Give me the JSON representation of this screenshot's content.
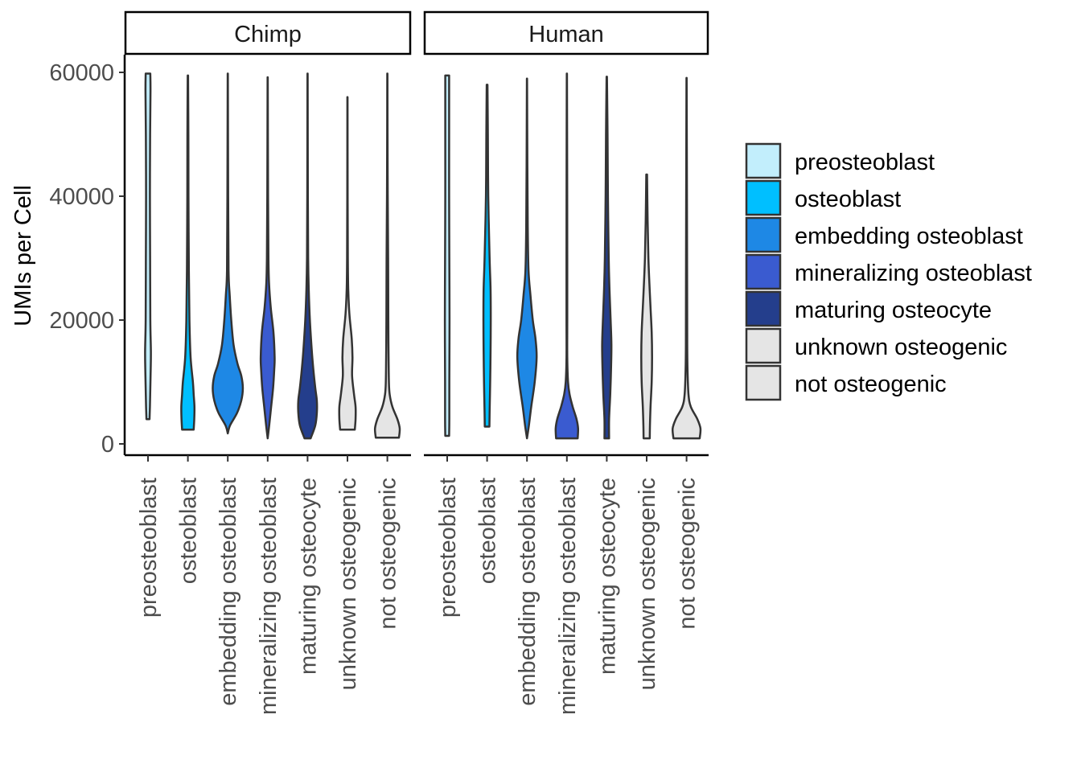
{
  "chart_data": {
    "type": "violin",
    "ylabel": "UMIs per Cell",
    "xlabel": "",
    "ylim": [
      -1500,
      63500
    ],
    "y_ticks": [
      0,
      20000,
      40000,
      60000
    ],
    "y_tick_labels": [
      "0",
      "20000",
      "40000",
      "60000"
    ],
    "categories": [
      "preosteoblast",
      "osteoblast",
      "embedding osteoblast",
      "mineralizing osteoblast",
      "maturing osteocyte",
      "unknown osteogenic",
      "not osteogenic"
    ],
    "colors": {
      "preosteoblast": "#c2eefc",
      "osteoblast": "#00bfff",
      "embedding osteoblast": "#1e88e5",
      "mineralizing osteoblast": "#3a5bd0",
      "maturing osteocyte": "#243e8c",
      "unknown osteogenic": "#e5e5e5",
      "not osteogenic": "#e5e5e5"
    },
    "panels": [
      {
        "name": "Chimp",
        "violins": [
          {
            "category": "preosteoblast",
            "ymin": 4000,
            "ymax": 59800,
            "profile": [
              [
                4000,
                0.08
              ],
              [
                6000,
                0.1
              ],
              [
                9000,
                0.12
              ],
              [
                12000,
                0.14
              ],
              [
                15000,
                0.15
              ],
              [
                20000,
                0.12
              ],
              [
                30000,
                0.11
              ],
              [
                40000,
                0.1
              ],
              [
                50000,
                0.11
              ],
              [
                57000,
                0.13
              ],
              [
                59800,
                0.12
              ]
            ]
          },
          {
            "category": "osteoblast",
            "ymin": 2300,
            "ymax": 59500,
            "profile": [
              [
                2300,
                0.3
              ],
              [
                4000,
                0.33
              ],
              [
                6000,
                0.34
              ],
              [
                8000,
                0.3
              ],
              [
                10000,
                0.26
              ],
              [
                14000,
                0.14
              ],
              [
                20000,
                0.08
              ],
              [
                28000,
                0.05
              ],
              [
                40000,
                0.03
              ],
              [
                50000,
                0.025
              ],
              [
                59500,
                0.01
              ]
            ]
          },
          {
            "category": "embedding osteoblast",
            "ymin": 1700,
            "ymax": 59800,
            "profile": [
              [
                1700,
                0.0
              ],
              [
                3000,
                0.12
              ],
              [
                5000,
                0.48
              ],
              [
                7000,
                0.7
              ],
              [
                9000,
                0.78
              ],
              [
                11000,
                0.7
              ],
              [
                13000,
                0.5
              ],
              [
                16000,
                0.3
              ],
              [
                20000,
                0.18
              ],
              [
                24000,
                0.1
              ],
              [
                28000,
                0.04
              ],
              [
                40000,
                0.02
              ],
              [
                59800,
                0.005
              ]
            ]
          },
          {
            "category": "mineralizing osteoblast",
            "ymin": 900,
            "ymax": 59200,
            "profile": [
              [
                900,
                0.0
              ],
              [
                3000,
                0.08
              ],
              [
                6000,
                0.18
              ],
              [
                9000,
                0.28
              ],
              [
                12000,
                0.34
              ],
              [
                14000,
                0.36
              ],
              [
                18000,
                0.3
              ],
              [
                22000,
                0.16
              ],
              [
                26000,
                0.07
              ],
              [
                30000,
                0.04
              ],
              [
                40000,
                0.02
              ],
              [
                59200,
                0.005
              ]
            ]
          },
          {
            "category": "maturing osteocyte",
            "ymin": 900,
            "ymax": 59800,
            "profile": [
              [
                900,
                0.16
              ],
              [
                3000,
                0.4
              ],
              [
                5000,
                0.48
              ],
              [
                7000,
                0.48
              ],
              [
                9000,
                0.4
              ],
              [
                12000,
                0.3
              ],
              [
                15000,
                0.22
              ],
              [
                20000,
                0.12
              ],
              [
                25000,
                0.06
              ],
              [
                30000,
                0.03
              ],
              [
                40000,
                0.015
              ],
              [
                59800,
                0.005
              ]
            ]
          },
          {
            "category": "unknown osteogenic",
            "ymin": 2300,
            "ymax": 56000,
            "profile": [
              [
                2300,
                0.38
              ],
              [
                4000,
                0.42
              ],
              [
                6000,
                0.42
              ],
              [
                8000,
                0.34
              ],
              [
                11000,
                0.24
              ],
              [
                14000,
                0.26
              ],
              [
                17000,
                0.22
              ],
              [
                21000,
                0.1
              ],
              [
                25000,
                0.04
              ],
              [
                30000,
                0.02
              ],
              [
                40000,
                0.01
              ],
              [
                56000,
                0.005
              ]
            ]
          },
          {
            "category": "not osteogenic",
            "ymin": 1000,
            "ymax": 59800,
            "profile": [
              [
                1000,
                0.6
              ],
              [
                2500,
                0.64
              ],
              [
                4000,
                0.52
              ],
              [
                6000,
                0.26
              ],
              [
                8000,
                0.12
              ],
              [
                10000,
                0.08
              ],
              [
                15000,
                0.06
              ],
              [
                20000,
                0.05
              ],
              [
                30000,
                0.04
              ],
              [
                40000,
                0.02
              ],
              [
                50000,
                0.01
              ],
              [
                59800,
                0.005
              ]
            ]
          }
        ]
      },
      {
        "name": "Human",
        "violins": [
          {
            "category": "preosteoblast",
            "ymin": 1300,
            "ymax": 59500,
            "profile": [
              [
                1300,
                0.1
              ],
              [
                4000,
                0.11
              ],
              [
                10000,
                0.11
              ],
              [
                20000,
                0.12
              ],
              [
                30000,
                0.11
              ],
              [
                40000,
                0.1
              ],
              [
                50000,
                0.1
              ],
              [
                57000,
                0.1
              ],
              [
                59500,
                0.1
              ]
            ]
          },
          {
            "category": "osteoblast",
            "ymin": 2800,
            "ymax": 58000,
            "profile": [
              [
                2800,
                0.12
              ],
              [
                5000,
                0.13
              ],
              [
                10000,
                0.16
              ],
              [
                15000,
                0.18
              ],
              [
                20000,
                0.19
              ],
              [
                25000,
                0.18
              ],
              [
                30000,
                0.13
              ],
              [
                40000,
                0.06
              ],
              [
                50000,
                0.04
              ],
              [
                58000,
                0.02
              ]
            ]
          },
          {
            "category": "embedding osteoblast",
            "ymin": 900,
            "ymax": 59000,
            "profile": [
              [
                900,
                0.0
              ],
              [
                3000,
                0.1
              ],
              [
                6000,
                0.22
              ],
              [
                10000,
                0.4
              ],
              [
                14000,
                0.5
              ],
              [
                17000,
                0.44
              ],
              [
                20000,
                0.3
              ],
              [
                24000,
                0.18
              ],
              [
                28000,
                0.08
              ],
              [
                35000,
                0.04
              ],
              [
                45000,
                0.02
              ],
              [
                59000,
                0.005
              ]
            ]
          },
          {
            "category": "mineralizing osteoblast",
            "ymin": 900,
            "ymax": 59800,
            "profile": [
              [
                900,
                0.56
              ],
              [
                2500,
                0.58
              ],
              [
                4000,
                0.5
              ],
              [
                6000,
                0.3
              ],
              [
                8000,
                0.14
              ],
              [
                10000,
                0.06
              ],
              [
                14000,
                0.02
              ],
              [
                20000,
                0.02
              ],
              [
                30000,
                0.02
              ],
              [
                45000,
                0.015
              ],
              [
                59800,
                0.005
              ]
            ]
          },
          {
            "category": "maturing osteocyte",
            "ymin": 900,
            "ymax": 59300,
            "profile": [
              [
                900,
                0.12
              ],
              [
                4000,
                0.12
              ],
              [
                8000,
                0.18
              ],
              [
                12000,
                0.22
              ],
              [
                16000,
                0.24
              ],
              [
                20000,
                0.2
              ],
              [
                25000,
                0.14
              ],
              [
                30000,
                0.1
              ],
              [
                40000,
                0.06
              ],
              [
                50000,
                0.04
              ],
              [
                59300,
                0.01
              ]
            ]
          },
          {
            "category": "unknown osteogenic",
            "ymin": 900,
            "ymax": 43500,
            "profile": [
              [
                900,
                0.16
              ],
              [
                3000,
                0.17
              ],
              [
                6000,
                0.2
              ],
              [
                10000,
                0.26
              ],
              [
                14000,
                0.28
              ],
              [
                18000,
                0.26
              ],
              [
                22000,
                0.2
              ],
              [
                26000,
                0.14
              ],
              [
                30000,
                0.09
              ],
              [
                36000,
                0.05
              ],
              [
                43500,
                0.02
              ]
            ]
          },
          {
            "category": "not osteogenic",
            "ymin": 900,
            "ymax": 59100,
            "profile": [
              [
                900,
                0.68
              ],
              [
                2500,
                0.72
              ],
              [
                4000,
                0.56
              ],
              [
                6000,
                0.22
              ],
              [
                8000,
                0.1
              ],
              [
                12000,
                0.05
              ],
              [
                16000,
                0.035
              ],
              [
                25000,
                0.03
              ],
              [
                40000,
                0.02
              ],
              [
                59100,
                0.005
              ]
            ]
          }
        ]
      }
    ],
    "legend": {
      "title": "",
      "placement": "right",
      "entries": [
        "preosteoblast",
        "osteoblast",
        "embedding osteoblast",
        "mineralizing osteoblast",
        "maturing osteocyte",
        "unknown osteogenic",
        "not osteogenic"
      ]
    },
    "grid": false
  }
}
